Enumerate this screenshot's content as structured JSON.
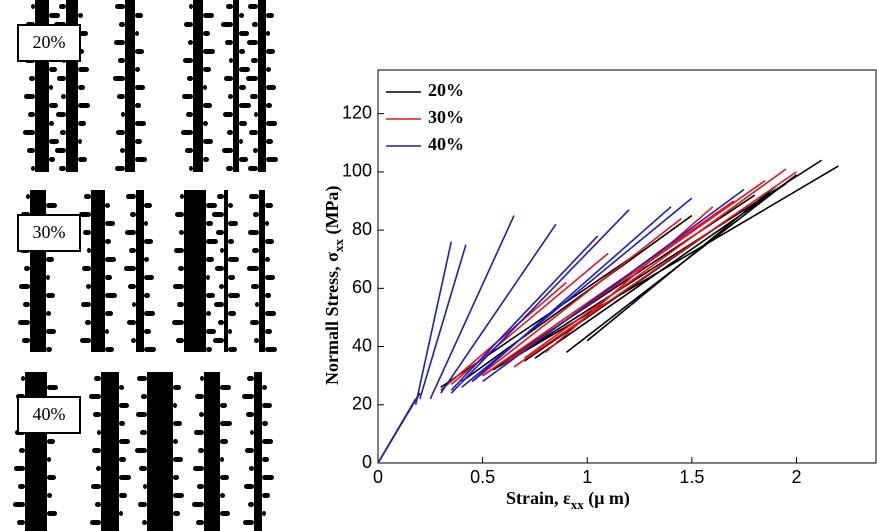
{
  "panels": [
    {
      "label": "20%"
    },
    {
      "label": "30%"
    },
    {
      "label": "40%"
    }
  ],
  "chart_data": {
    "type": "line",
    "xlabel": "Strain, ε",
    "xlabel_sub": "xx",
    "xlabel_unit": " (μ m)",
    "ylabel": "Normall Stress, σ",
    "ylabel_sub": "xx",
    "ylabel_unit": " (MPa)",
    "xlim": [
      0,
      2.38
    ],
    "ylim": [
      0,
      135
    ],
    "xticks": [
      0,
      0.5,
      1,
      1.5,
      2
    ],
    "yticks": [
      0,
      20,
      40,
      60,
      80,
      100,
      120
    ],
    "legend": "upper left",
    "grid": false,
    "series": [
      {
        "name": "20%",
        "color": "#000000",
        "x": [
          0,
          0.2,
          null,
          0.55,
          2.2,
          null,
          0.6,
          2.12,
          null,
          0.75,
          1.95,
          null,
          0.9,
          2.0,
          null,
          0.5,
          1.8,
          null,
          0.7,
          1.6,
          null,
          1.0,
          1.9,
          null,
          0.4,
          1.5,
          null,
          0.3,
          1.2
        ],
        "values": [
          0,
          24,
          null,
          32,
          102,
          null,
          34,
          104,
          null,
          36,
          96,
          null,
          38,
          99,
          null,
          30,
          92,
          null,
          35,
          80,
          null,
          42,
          95,
          null,
          28,
          85,
          null,
          26,
          70
        ]
      },
      {
        "name": "30%",
        "color": "#e8141c",
        "x": [
          0,
          0.19,
          null,
          0.65,
          2.0,
          null,
          0.7,
          1.95,
          null,
          0.5,
          1.7,
          null,
          0.45,
          1.45,
          null,
          0.35,
          1.1,
          null,
          0.6,
          1.85,
          null,
          0.8,
          1.6,
          null,
          0.3,
          0.9
        ],
        "values": [
          0,
          23,
          null,
          33,
          100,
          null,
          36,
          101,
          null,
          30,
          90,
          null,
          28,
          84,
          null,
          27,
          72,
          null,
          34,
          97,
          null,
          38,
          88,
          null,
          25,
          62
        ]
      },
      {
        "name": "40%",
        "color": "#1c1ccc",
        "x": [
          0,
          0.18,
          null,
          0.18,
          0.35,
          null,
          0.2,
          0.42,
          null,
          0.25,
          0.65,
          null,
          0.3,
          0.85,
          null,
          0.35,
          1.2,
          null,
          0.4,
          1.5,
          null,
          0.45,
          1.4,
          null,
          0.5,
          1.75,
          null,
          0.35,
          1.05
        ],
        "values": [
          0,
          22,
          null,
          20,
          76,
          null,
          22,
          75,
          null,
          22,
          85,
          null,
          24,
          82,
          null,
          24,
          87,
          null,
          26,
          91,
          null,
          28,
          88,
          null,
          28,
          94,
          null,
          25,
          78
        ]
      }
    ]
  }
}
